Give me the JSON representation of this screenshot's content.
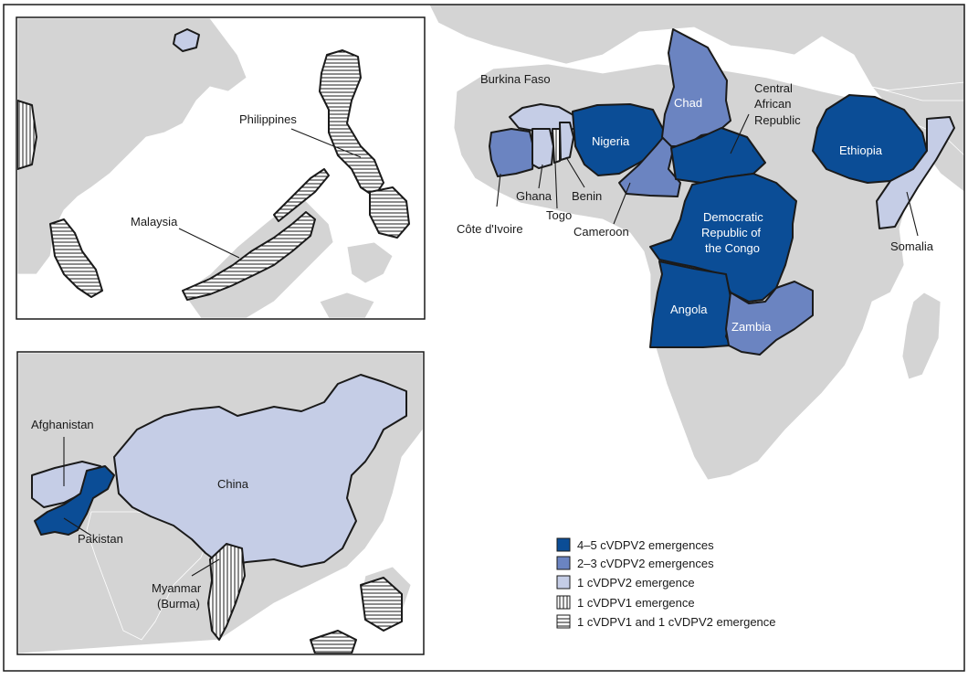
{
  "colors": {
    "band_4_5": "#0b4d96",
    "band_2_3": "#6b84c1",
    "band_1": "#c5cde6",
    "land": "#d4d4d4",
    "border": "#1a1a1a"
  },
  "legend": {
    "items": [
      {
        "label": "4–5 cVDPV2 emergences",
        "fill": "dark"
      },
      {
        "label": "2–3 cVDPV2 emergences",
        "fill": "mid"
      },
      {
        "label": "1 cVDPV2 emergence",
        "fill": "light"
      },
      {
        "label": "1 cVDPV1 emergence",
        "fill": "vertical-stripes"
      },
      {
        "label": "1 cVDPV1 and 1 cVDPV2 emergence",
        "fill": "horizontal-stripes"
      }
    ]
  },
  "africa": {
    "burkina_faso": "Burkina Faso",
    "chad": "Chad",
    "car_1": "Central",
    "car_2": "African",
    "car_3": "Republic",
    "nigeria": "Nigeria",
    "ethiopia": "Ethiopia",
    "ghana": "Ghana",
    "benin": "Benin",
    "togo": "Togo",
    "cote_divoire": "Côte d'Ivoire",
    "cameroon": "Cameroon",
    "drc_1": "Democratic",
    "drc_2": "Republic of",
    "drc_3": "the Congo",
    "somalia": "Somalia",
    "angola": "Angola",
    "zambia": "Zambia"
  },
  "southeast_asia": {
    "philippines": "Philippines",
    "malaysia": "Malaysia"
  },
  "asia": {
    "afghanistan": "Afghanistan",
    "china": "China",
    "pakistan": "Pakistan",
    "myanmar_1": "Myanmar",
    "myanmar_2": "(Burma)"
  }
}
